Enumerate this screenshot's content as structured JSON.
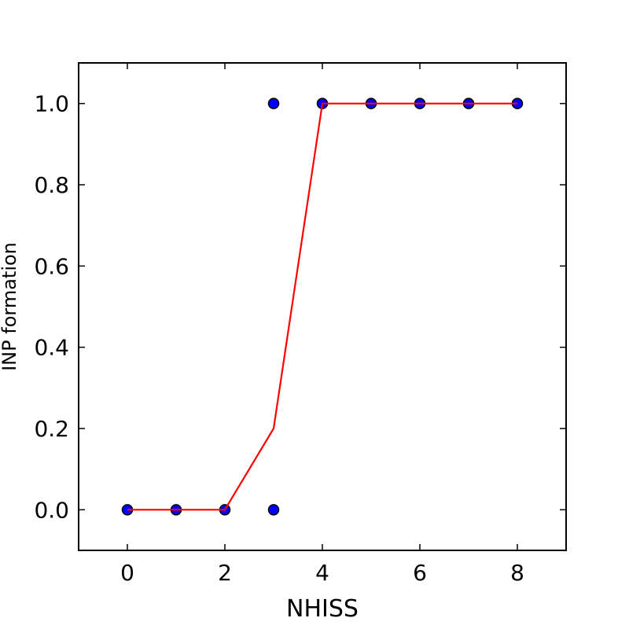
{
  "chart_data": {
    "type": "scatter",
    "title": "",
    "xlabel": "NHISS",
    "ylabel": "INP formation",
    "xlim": [
      -1,
      9
    ],
    "ylim": [
      -0.1,
      1.1
    ],
    "xticks": [
      0,
      2,
      4,
      6,
      8
    ],
    "yticks": [
      0.0,
      0.2,
      0.4,
      0.6,
      0.8,
      1.0
    ],
    "xtick_labels": [
      "0",
      "2",
      "4",
      "6",
      "8"
    ],
    "ytick_labels": [
      "0.0",
      "0.2",
      "0.4",
      "0.6",
      "0.8",
      "1.0"
    ],
    "grid": false,
    "legend": "none",
    "series": [
      {
        "kind": "scatter",
        "color": "#0000ff",
        "edge_color": "#000000",
        "x": [
          0,
          1,
          2,
          3,
          3,
          4,
          5,
          6,
          7,
          8
        ],
        "y": [
          0,
          0,
          0,
          0,
          1,
          1,
          1,
          1,
          1,
          1
        ]
      },
      {
        "kind": "line",
        "color": "#ff0000",
        "x": [
          0,
          1,
          2,
          3,
          4,
          5,
          6,
          7,
          8
        ],
        "y": [
          0,
          0,
          0,
          0.2,
          1,
          1,
          1,
          1,
          1
        ]
      }
    ]
  }
}
